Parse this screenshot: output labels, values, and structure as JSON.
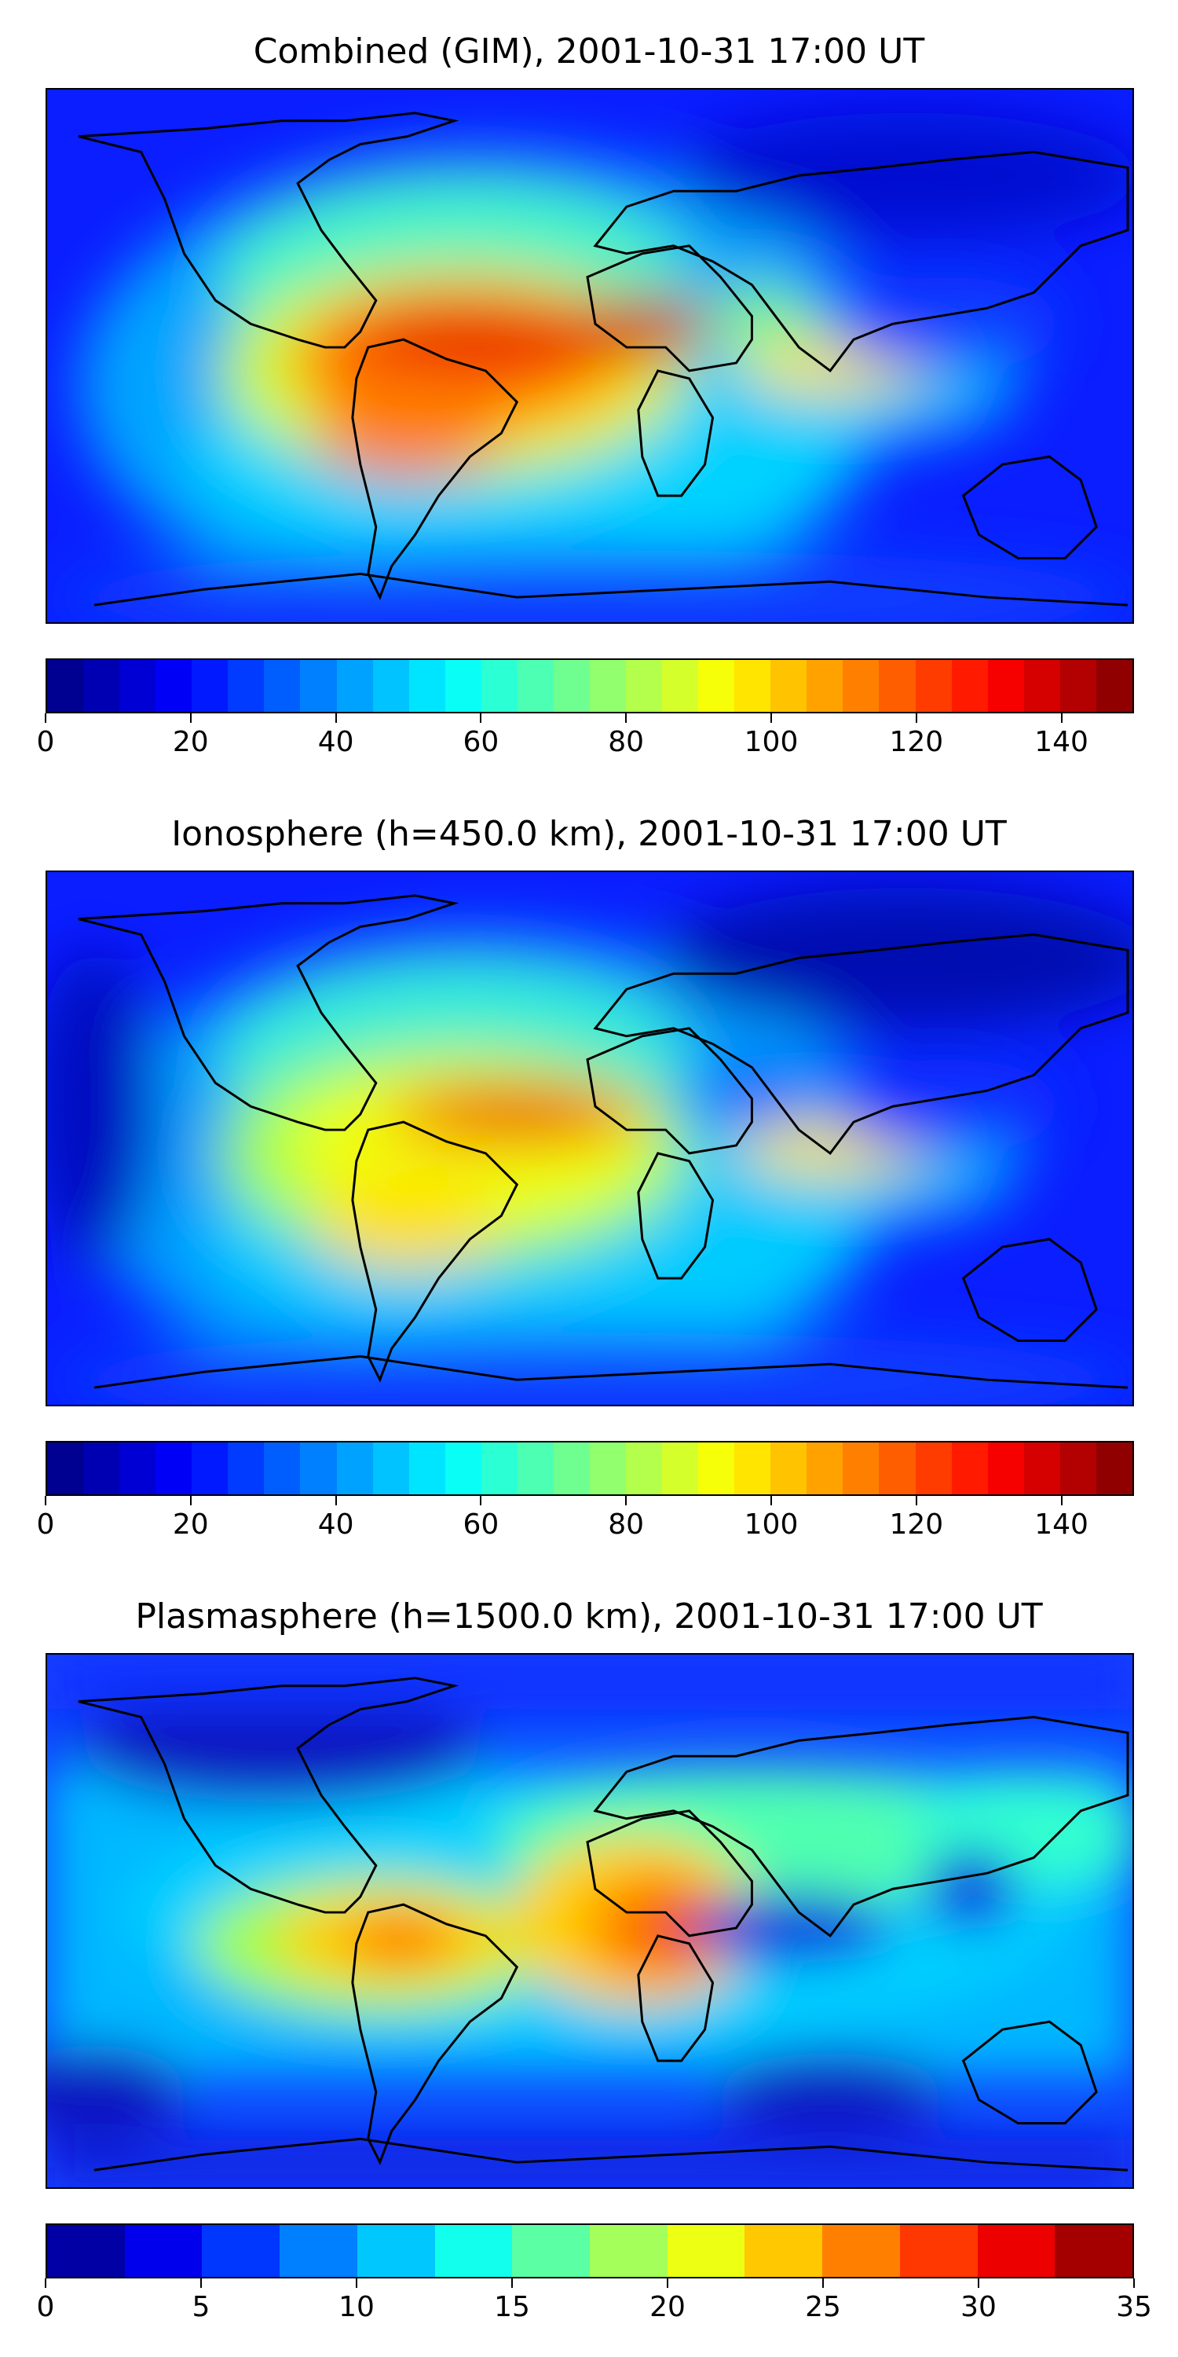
{
  "panels": [
    {
      "title": "Combined (GIM), 2001-10-31 17:00 UT",
      "colorbar": {
        "min": 0,
        "max": 150,
        "levels": 30,
        "ticks": [
          "0",
          "20",
          "40",
          "60",
          "80",
          "100",
          "120",
          "140"
        ],
        "tick_values": [
          0,
          20,
          40,
          60,
          80,
          100,
          120,
          140
        ]
      }
    },
    {
      "title": "Ionosphere  (h=450.0 km), 2001-10-31 17:00 UT",
      "colorbar": {
        "min": 0,
        "max": 150,
        "levels": 30,
        "ticks": [
          "0",
          "20",
          "40",
          "60",
          "80",
          "100",
          "120",
          "140"
        ],
        "tick_values": [
          0,
          20,
          40,
          60,
          80,
          100,
          120,
          140
        ]
      }
    },
    {
      "title": "Plasmasphere (h=1500.0 km), 2001-10-31 17:00 UT",
      "colorbar": {
        "min": 0,
        "max": 35,
        "levels": 14,
        "ticks": [
          "0",
          "5",
          "10",
          "15",
          "20",
          "25",
          "30",
          "35"
        ],
        "tick_values": [
          0,
          5,
          10,
          15,
          20,
          25,
          30,
          35
        ]
      }
    }
  ],
  "colormap": "jet"
}
